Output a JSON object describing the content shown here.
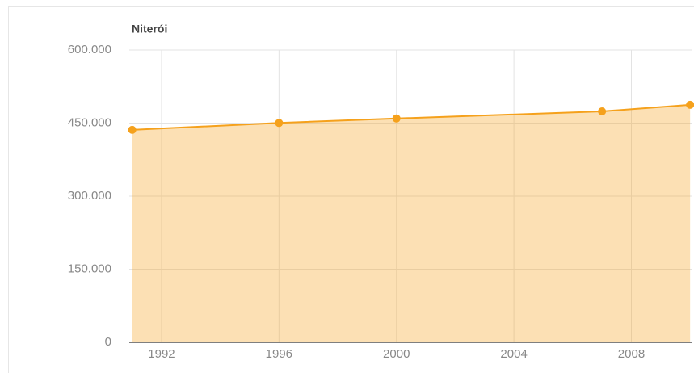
{
  "chart_data": {
    "type": "area",
    "title": "Niterói",
    "x": [
      1991,
      1996,
      2000,
      2007,
      2010
    ],
    "series": [
      {
        "name": "Niterói",
        "color": "#f5a11c",
        "values": [
          436155,
          450364,
          459451,
          474002,
          487562
        ]
      }
    ],
    "xlim": [
      1990.9,
      2010.05
    ],
    "xticks": [
      1992,
      1996,
      2000,
      2004,
      2008
    ],
    "ylim": [
      0,
      600000
    ],
    "yticks": [
      0,
      {
        "value": 150000,
        "label": "150.000"
      },
      {
        "value": 300000,
        "label": "300.000"
      },
      {
        "value": 450000,
        "label": "450.000"
      },
      {
        "value": 600000,
        "label": "600.000"
      }
    ],
    "grid": true
  }
}
